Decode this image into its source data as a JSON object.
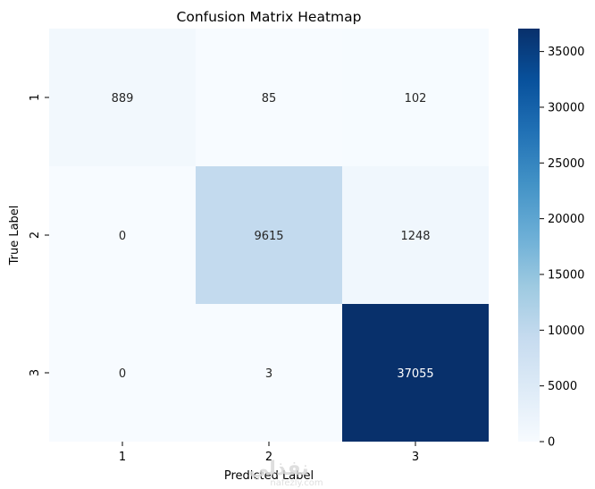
{
  "chart_data": {
    "type": "heatmap",
    "title": "Confusion Matrix Heatmap",
    "xlabel": "Predicted Label",
    "ylabel": "True Label",
    "x_categories": [
      "1",
      "2",
      "3"
    ],
    "y_categories": [
      "1",
      "2",
      "3"
    ],
    "values": [
      [
        889,
        85,
        102
      ],
      [
        0,
        9615,
        1248
      ],
      [
        0,
        3,
        37055
      ]
    ],
    "value_range": [
      0,
      37055
    ],
    "colormap": "Blues",
    "colormap_stops": [
      "#f7fbff",
      "#deebf7",
      "#c6dbef",
      "#9ecae1",
      "#6baed6",
      "#4292c6",
      "#2171b5",
      "#08519c",
      "#08306b"
    ],
    "colorbar_ticks": [
      0,
      5000,
      10000,
      15000,
      20000,
      25000,
      30000,
      35000
    ],
    "grid": false
  },
  "watermark": {
    "line1": "نفذلي",
    "line2": "nafezly.com"
  }
}
